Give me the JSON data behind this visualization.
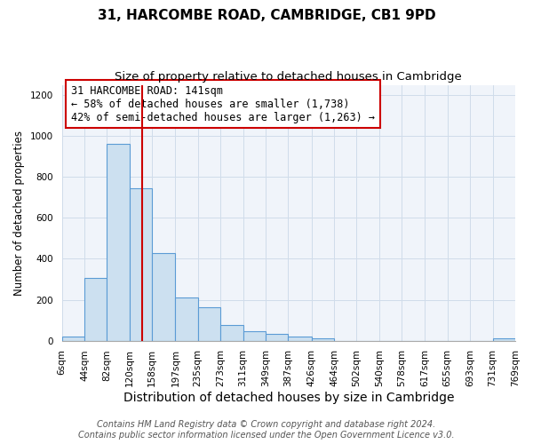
{
  "title": "31, HARCOMBE ROAD, CAMBRIDGE, CB1 9PD",
  "subtitle": "Size of property relative to detached houses in Cambridge",
  "xlabel": "Distribution of detached houses by size in Cambridge",
  "ylabel": "Number of detached properties",
  "bin_edges": [
    6,
    44,
    82,
    120,
    158,
    197,
    235,
    273,
    311,
    349,
    387,
    426,
    464,
    502,
    540,
    578,
    617,
    655,
    693,
    731,
    769
  ],
  "bar_heights": [
    20,
    305,
    960,
    745,
    430,
    210,
    165,
    75,
    48,
    32,
    18,
    10,
    0,
    0,
    0,
    0,
    0,
    0,
    0,
    10
  ],
  "bar_color": "#cce0f0",
  "bar_edge_color": "#5b9bd5",
  "vline_x": 141,
  "vline_color": "#cc0000",
  "annotation_lines": [
    "31 HARCOMBE ROAD: 141sqm",
    "← 58% of detached houses are smaller (1,738)",
    "42% of semi-detached houses are larger (1,263) →"
  ],
  "annotation_fontsize": 8.5,
  "ylim": [
    0,
    1250
  ],
  "yticks": [
    0,
    200,
    400,
    600,
    800,
    1000,
    1200
  ],
  "footer_line1": "Contains HM Land Registry data © Crown copyright and database right 2024.",
  "footer_line2": "Contains public sector information licensed under the Open Government Licence v3.0.",
  "title_fontsize": 11,
  "subtitle_fontsize": 9.5,
  "xlabel_fontsize": 10,
  "ylabel_fontsize": 8.5,
  "footer_fontsize": 7,
  "tick_label_fontsize": 7.5,
  "grid_color": "#d0dcea",
  "bg_color": "#f0f4fa"
}
